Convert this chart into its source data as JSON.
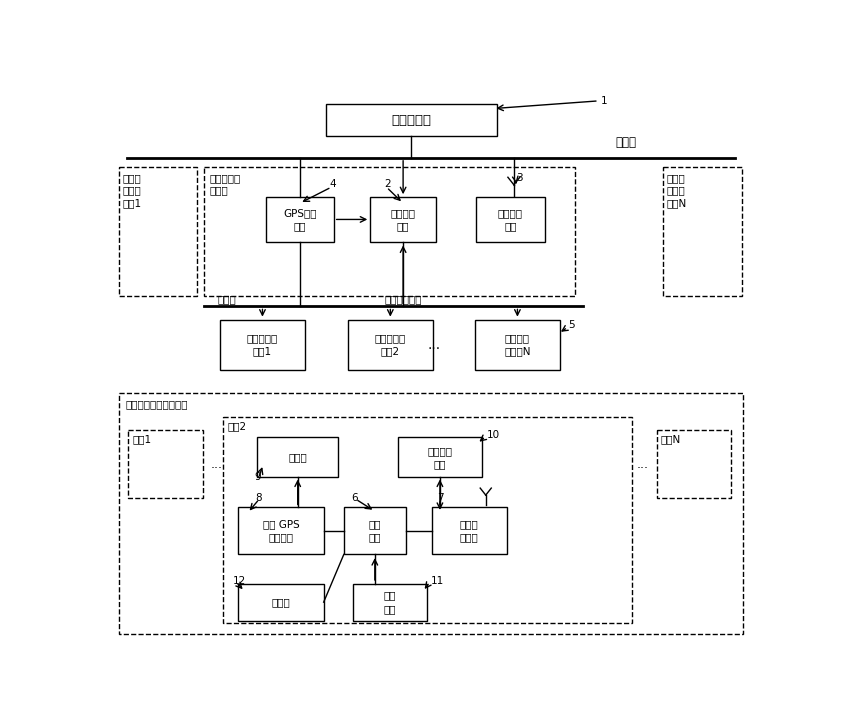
{
  "fig_width": 8.41,
  "fig_height": 7.25,
  "dpi": 100,
  "title_label": "通信服务器",
  "ethernet_label": "以太网",
  "station_data_label": "站场状态数据",
  "dispatch_center_label": "调度集中区\n域中心",
  "dispatch_center1_label": "调度集\n中区域\n中心1",
  "dispatch_centerN_label": "调度集\n中区域\n中心N",
  "gps_label": "GPS授时\n设备",
  "dispatch_main_label": "调度集中\n主机",
  "data_radio_label": "数传电台\n基站",
  "computer_lock1_label": "计算机联锁\n系统1",
  "computer_lock2_label": "计算机联锁\n系统2",
  "computer_lockN_label": "计算机联\n锁系统N",
  "dispatch_station_label": "调度集中所辖站场区域",
  "loco1_label": "机车1",
  "loco2_label": "机车2",
  "locoN_label": "机车N",
  "display_label": "显示器",
  "voice_label": "语音报警\n音箱",
  "gps_on_label": "车载 GPS\n授时设备",
  "control_label": "安控\n主机",
  "data_radio_on_label": "车载数\n传电台",
  "sensor_label": "传感器",
  "brake_label": "制动\n装置",
  "num1": "1",
  "num2": "2",
  "num3": "3",
  "num4": "4",
  "num5": "5",
  "num6": "6",
  "num7": "7",
  "num8": "8",
  "num9": "9",
  "num10": "10",
  "num11": "11",
  "num12": "12"
}
